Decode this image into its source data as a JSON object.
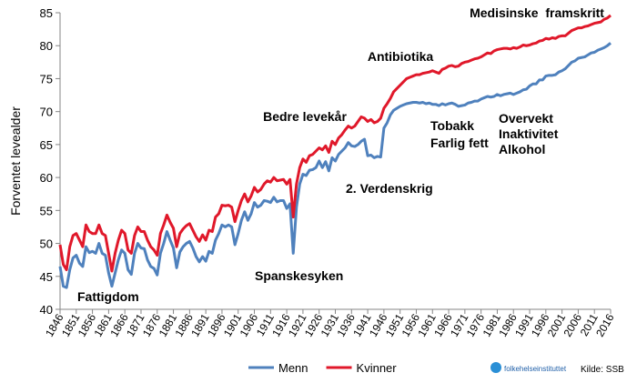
{
  "chart_data": {
    "type": "line",
    "y_label": "Forventet levealder",
    "x": [
      1846,
      1847,
      1848,
      1849,
      1850,
      1851,
      1852,
      1853,
      1854,
      1855,
      1856,
      1857,
      1858,
      1859,
      1860,
      1861,
      1862,
      1863,
      1864,
      1865,
      1866,
      1867,
      1868,
      1869,
      1870,
      1871,
      1872,
      1873,
      1874,
      1875,
      1876,
      1877,
      1878,
      1879,
      1880,
      1881,
      1882,
      1883,
      1884,
      1885,
      1886,
      1887,
      1888,
      1889,
      1890,
      1891,
      1892,
      1893,
      1894,
      1895,
      1896,
      1897,
      1898,
      1899,
      1900,
      1901,
      1902,
      1903,
      1904,
      1905,
      1906,
      1907,
      1908,
      1909,
      1910,
      1911,
      1912,
      1913,
      1914,
      1915,
      1916,
      1917,
      1918,
      1919,
      1920,
      1921,
      1922,
      1923,
      1924,
      1925,
      1926,
      1927,
      1928,
      1929,
      1930,
      1931,
      1932,
      1933,
      1934,
      1935,
      1936,
      1937,
      1938,
      1939,
      1940,
      1941,
      1942,
      1943,
      1944,
      1945,
      1946,
      1947,
      1948,
      1949,
      1950,
      1951,
      1952,
      1953,
      1954,
      1955,
      1956,
      1957,
      1958,
      1959,
      1960,
      1961,
      1962,
      1963,
      1964,
      1965,
      1966,
      1967,
      1968,
      1969,
      1970,
      1971,
      1972,
      1973,
      1974,
      1975,
      1976,
      1977,
      1978,
      1979,
      1980,
      1981,
      1982,
      1983,
      1984,
      1985,
      1986,
      1987,
      1988,
      1989,
      1990,
      1991,
      1992,
      1993,
      1994,
      1995,
      1996,
      1997,
      1998,
      1999,
      2000,
      2001,
      2002,
      2003,
      2004,
      2005,
      2006,
      2007,
      2008,
      2009,
      2010,
      2011,
      2012,
      2013,
      2014,
      2015,
      2016
    ],
    "series": [
      {
        "name": "Menn",
        "color": "#4f81bd",
        "values": [
          46.5,
          43.5,
          43.3,
          46,
          47.8,
          48.2,
          47,
          46.5,
          49.5,
          48.6,
          48.8,
          48.5,
          50,
          48.5,
          48.2,
          45.5,
          43.5,
          45.5,
          47.5,
          49,
          48.5,
          46,
          45.3,
          48.5,
          50,
          49.3,
          49.2,
          47.5,
          46.5,
          46.2,
          45.2,
          48.5,
          50,
          51.8,
          50.5,
          49.3,
          46.3,
          48.7,
          49.5,
          50,
          50.3,
          49.3,
          48,
          47.2,
          48,
          47.3,
          48.8,
          48.5,
          50.5,
          51.5,
          52.8,
          52.5,
          52.8,
          52.5,
          49.8,
          51.5,
          53.5,
          54.8,
          53.5,
          54.5,
          56.2,
          55.5,
          55.8,
          56.5,
          56.4,
          56.2,
          57,
          56.3,
          56.5,
          56.5,
          55.3,
          56,
          48.5,
          55.5,
          59,
          60.5,
          60.3,
          61.1,
          61.2,
          61.5,
          62.5,
          61.5,
          62.4,
          61,
          63,
          62.5,
          63.5,
          64,
          64.5,
          65.3,
          64.8,
          64.7,
          65,
          65.5,
          65.8,
          63.3,
          63.4,
          63,
          63.2,
          63.1,
          67.5,
          68.3,
          69.5,
          70.2,
          70.5,
          70.8,
          71,
          71.2,
          71.3,
          71.4,
          71.4,
          71.3,
          71.4,
          71.2,
          71.3,
          71.1,
          71.1,
          70.9,
          71.2,
          71,
          71.2,
          71.3,
          71.1,
          70.8,
          70.9,
          71,
          71.3,
          71.4,
          71.6,
          71.6,
          71.9,
          72.1,
          72.3,
          72.2,
          72.3,
          72.6,
          72.4,
          72.6,
          72.7,
          72.8,
          72.6,
          72.8,
          73,
          73.3,
          73.4,
          73.9,
          74.2,
          74.2,
          74.8,
          74.8,
          75.4,
          75.5,
          75.5,
          75.6,
          76,
          76.2,
          76.5,
          77,
          77.5,
          77.7,
          78.1,
          78.2,
          78.3,
          78.6,
          78.9,
          79,
          79.3,
          79.5,
          79.7,
          80,
          80.4
        ]
      },
      {
        "name": "Kvinner",
        "color": "#e0182a",
        "values": [
          49.8,
          46.8,
          46,
          49.5,
          51.2,
          51.5,
          50.5,
          49.5,
          52.8,
          51.8,
          51.5,
          51.5,
          52.8,
          51.5,
          51.2,
          48.5,
          45.8,
          48.5,
          50.5,
          52,
          51.5,
          49,
          48.5,
          51.2,
          52.5,
          51.8,
          51.8,
          50.5,
          49.5,
          49,
          48.2,
          51.5,
          52.8,
          54.3,
          53.2,
          52.3,
          49.5,
          51.5,
          52.2,
          52.7,
          53,
          52,
          51,
          50.3,
          51.3,
          50.5,
          52,
          51.8,
          54,
          54.5,
          55.8,
          55.7,
          55.8,
          55.5,
          53.3,
          55,
          56.5,
          57.5,
          56.3,
          57.2,
          58.5,
          57.8,
          58.2,
          59,
          59.5,
          59.3,
          60,
          59.5,
          59.6,
          59.7,
          59,
          59.7,
          54,
          59,
          61.5,
          62.8,
          62.3,
          63.3,
          63.5,
          64,
          64.5,
          64.2,
          64.8,
          63.8,
          65.5,
          65,
          66,
          66.5,
          67.2,
          67.8,
          67.5,
          67.8,
          68.5,
          69.2,
          69,
          68.5,
          68.8,
          68.3,
          68.5,
          69,
          70.5,
          71.2,
          72,
          73,
          73.5,
          74,
          74.5,
          75,
          75.2,
          75.4,
          75.6,
          75.6,
          75.8,
          75.9,
          76,
          76.2,
          76,
          75.8,
          76.4,
          76.6,
          76.9,
          77,
          76.8,
          76.9,
          77.3,
          77.5,
          77.6,
          77.8,
          78,
          78.1,
          78.3,
          78.6,
          78.9,
          78.8,
          79.2,
          79.4,
          79.5,
          79.6,
          79.6,
          79.5,
          79.7,
          79.6,
          79.8,
          80.1,
          80,
          80.1,
          80.3,
          80.4,
          80.7,
          80.8,
          81.1,
          81,
          81.2,
          81.1,
          81.4,
          81.5,
          81.5,
          81.9,
          82.3,
          82.5,
          82.7,
          82.7,
          82.9,
          83,
          83.2,
          83.4,
          83.5,
          83.6,
          84,
          84.2,
          84.6
        ]
      }
    ],
    "xlim": [
      1846,
      2016
    ],
    "xticks": [
      1846,
      1851,
      1856,
      1861,
      1866,
      1871,
      1876,
      1881,
      1886,
      1891,
      1896,
      1901,
      1906,
      1911,
      1916,
      1921,
      1926,
      1931,
      1936,
      1941,
      1946,
      1951,
      1956,
      1961,
      1966,
      1971,
      1976,
      1981,
      1986,
      1991,
      1996,
      2001,
      2006,
      2011,
      2016
    ],
    "ylim": [
      40,
      85
    ],
    "yticks": [
      40,
      45,
      50,
      55,
      60,
      65,
      70,
      75,
      80,
      85
    ],
    "grid": false,
    "legend": "bottom",
    "annotations": [
      "Medisinske  framskritt",
      "Antibiotika",
      "Bedre levekår",
      "Tobakk",
      "Farlig fett",
      "Overvekt",
      "Inaktivitet",
      "Alkohol",
      "2. Verdenskrig",
      "Spanskesyken",
      "Fattigdom"
    ],
    "logo": "folkehelseinstituttet",
    "source": "Kilde: SSB"
  }
}
